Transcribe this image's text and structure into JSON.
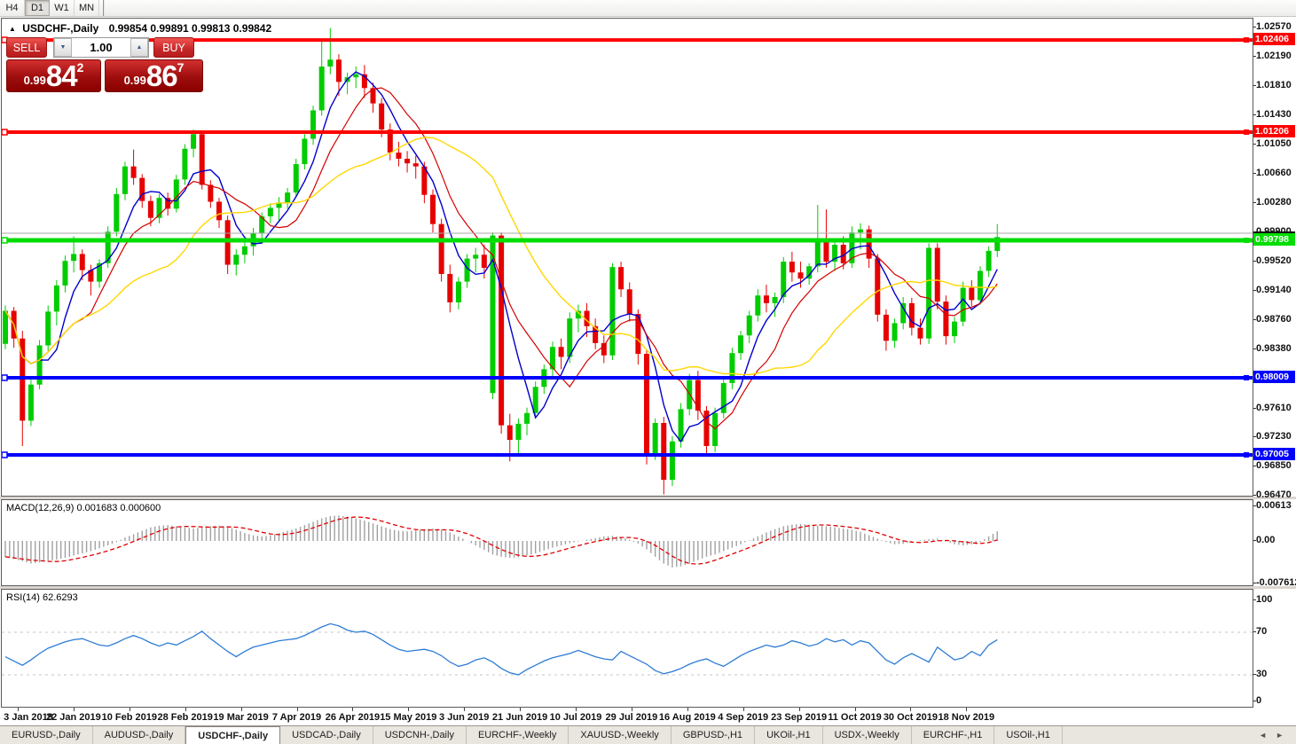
{
  "toolbar": {
    "timeframes": [
      {
        "label": "H4",
        "active": false
      },
      {
        "label": "D1",
        "active": true
      },
      {
        "label": "W1",
        "active": false
      },
      {
        "label": "MN",
        "active": false
      }
    ]
  },
  "chart": {
    "symbol_header": {
      "collapse_icon": "▲",
      "title": "USDCHF-,Daily",
      "ohlc": "0.99854 0.99891 0.99813 0.99842"
    },
    "trade_panel": {
      "sell_label": "SELL",
      "buy_label": "BUY",
      "volume_value": "1.00",
      "spin_down_icon": "▼",
      "spin_up_icon": "▲",
      "sell_price": {
        "prefix": "0.99",
        "digits": "84",
        "sup": "2"
      },
      "buy_price": {
        "prefix": "0.99",
        "digits": "86",
        "sup": "7"
      }
    }
  },
  "chart_data": {
    "type": "candlestick",
    "title": "USDCHF-,Daily",
    "y_axis": {
      "range": [
        0.9647,
        1.0269
      ],
      "ticks": [
        "1.02570",
        "1.02190",
        "1.01810",
        "1.01430",
        "1.01050",
        "1.00660",
        "1.00280",
        "0.99900",
        "0.99520",
        "0.99140",
        "0.98760",
        "0.98380",
        "0.98000",
        "0.97610",
        "0.97230",
        "0.96850",
        "0.96470"
      ]
    },
    "x_axis": {
      "dates": [
        "3 Jan 2019",
        "22 Jan 2019",
        "10 Feb 2019",
        "28 Feb 2019",
        "19 Mar 2019",
        "7 Apr 2019",
        "26 Apr 2019",
        "15 May 2019",
        "3 Jun 2019",
        "21 Jun 2019",
        "10 Jul 2019",
        "29 Jul 2019",
        "16 Aug 2019",
        "4 Sep 2019",
        "23 Sep 2019",
        "11 Oct 2019",
        "30 Oct 2019",
        "18 Nov 2019"
      ]
    },
    "levels": [
      {
        "price": 1.02406,
        "label": "1.02406",
        "color": "#ff0000",
        "thickness": 4
      },
      {
        "price": 1.01206,
        "label": "1.01206",
        "color": "#ff0000",
        "thickness": 4
      },
      {
        "price": 0.99798,
        "label": "0.99798",
        "color": "#00dd00",
        "thickness": 5
      },
      {
        "price": 0.98009,
        "label": "0.98009",
        "color": "#0000ff",
        "thickness": 4
      },
      {
        "price": 0.97005,
        "label": "0.97005",
        "color": "#0000ff",
        "thickness": 4
      },
      {
        "price": 0.9989,
        "label": "",
        "color": "#a8a8a8",
        "thickness": 1
      }
    ],
    "candles": [
      [
        0.9845,
        0.9895,
        0.9838,
        0.9888
      ],
      [
        0.9888,
        0.9893,
        0.984,
        0.9852
      ],
      [
        0.9852,
        0.9862,
        0.9712,
        0.9745
      ],
      [
        0.9745,
        0.98,
        0.9738,
        0.9792
      ],
      [
        0.9792,
        0.985,
        0.9786,
        0.9843
      ],
      [
        0.9843,
        0.9895,
        0.9836,
        0.9887
      ],
      [
        0.9887,
        0.9928,
        0.9869,
        0.9921
      ],
      [
        0.9921,
        0.996,
        0.9912,
        0.9953
      ],
      [
        0.9953,
        0.9985,
        0.9938,
        0.9962
      ],
      [
        0.9962,
        0.9968,
        0.9928,
        0.9941
      ],
      [
        0.9941,
        0.9948,
        0.9908,
        0.9926
      ],
      [
        0.9926,
        0.9955,
        0.9918,
        0.995
      ],
      [
        0.995,
        0.9998,
        0.9944,
        0.9991
      ],
      [
        0.9991,
        1.0048,
        0.9985,
        1.004
      ],
      [
        1.004,
        1.0082,
        1.0032,
        1.0076
      ],
      [
        1.0076,
        1.0098,
        1.0052,
        1.0061
      ],
      [
        1.0061,
        1.0066,
        1.0022,
        1.0031
      ],
      [
        1.0031,
        1.0038,
        0.9998,
        1.0009
      ],
      [
        1.0009,
        1.004,
        1.0002,
        1.0035
      ],
      [
        1.0035,
        1.0042,
        1.0012,
        1.0021
      ],
      [
        1.0021,
        1.0065,
        1.0016,
        1.0059
      ],
      [
        1.0059,
        1.0105,
        1.0052,
        1.0099
      ],
      [
        1.0099,
        1.0124,
        1.0088,
        1.0118
      ],
      [
        1.0118,
        1.0122,
        1.0046,
        1.0052
      ],
      [
        1.0052,
        1.0058,
        1.0022,
        1.003
      ],
      [
        1.003,
        1.0035,
        0.9996,
        1.0006
      ],
      [
        1.0006,
        1.0012,
        0.9936,
        0.9948
      ],
      [
        0.9948,
        0.9968,
        0.9934,
        0.9961
      ],
      [
        0.9961,
        0.998,
        0.995,
        0.9972
      ],
      [
        0.9972,
        0.9996,
        0.996,
        0.9989
      ],
      [
        0.9989,
        1.0016,
        0.9982,
        1.0011
      ],
      [
        1.0011,
        1.0028,
        1.0002,
        1.0022
      ],
      [
        1.0022,
        1.0036,
        1.0006,
        1.0029
      ],
      [
        1.0029,
        1.0048,
        1.0021,
        1.0042
      ],
      [
        1.0042,
        1.0086,
        1.0036,
        1.0079
      ],
      [
        1.0079,
        1.0118,
        1.0072,
        1.0112
      ],
      [
        1.0112,
        1.0155,
        1.0104,
        1.0149
      ],
      [
        1.0149,
        1.0241,
        1.0142,
        1.0206
      ],
      [
        1.0206,
        1.0256,
        1.0196,
        1.0215
      ],
      [
        1.0215,
        1.0222,
        1.0168,
        1.0186
      ],
      [
        1.0186,
        1.0198,
        1.017,
        1.0192
      ],
      [
        1.0192,
        1.0206,
        1.0178,
        1.0196
      ],
      [
        1.0196,
        1.0208,
        1.0165,
        1.0178
      ],
      [
        1.0178,
        1.0185,
        1.0146,
        1.0158
      ],
      [
        1.0158,
        1.0165,
        1.0114,
        1.0124
      ],
      [
        1.0124,
        1.0132,
        1.0084,
        1.0094
      ],
      [
        1.0094,
        1.0108,
        1.0076,
        1.0086
      ],
      [
        1.0086,
        1.0096,
        1.0068,
        1.008
      ],
      [
        1.008,
        1.009,
        1.006,
        1.0076
      ],
      [
        1.0076,
        1.0082,
        1.0028,
        1.0039
      ],
      [
        1.0039,
        1.0046,
        0.999,
        1.0001
      ],
      [
        1.0001,
        1.0008,
        0.9926,
        0.9936
      ],
      [
        0.9936,
        0.9948,
        0.9886,
        0.9899
      ],
      [
        0.9899,
        0.9932,
        0.989,
        0.9926
      ],
      [
        0.9926,
        0.9962,
        0.9918,
        0.9956
      ],
      [
        0.9956,
        0.997,
        0.9938,
        0.9961
      ],
      [
        0.9961,
        0.9974,
        0.993,
        0.9944
      ],
      [
        0.9781,
        0.999,
        0.9773,
        0.9986
      ],
      [
        0.9986,
        0.999,
        0.9728,
        0.9739
      ],
      [
        0.9739,
        0.9754,
        0.9692,
        0.972
      ],
      [
        0.972,
        0.9748,
        0.97,
        0.9741
      ],
      [
        0.9741,
        0.9762,
        0.9726,
        0.9755
      ],
      [
        0.9755,
        0.9796,
        0.9748,
        0.9789
      ],
      [
        0.9789,
        0.9818,
        0.978,
        0.9812
      ],
      [
        0.9812,
        0.9848,
        0.98,
        0.9841
      ],
      [
        0.9841,
        0.9852,
        0.9812,
        0.9828
      ],
      [
        0.9828,
        0.9886,
        0.982,
        0.9878
      ],
      [
        0.9878,
        0.9896,
        0.986,
        0.9888
      ],
      [
        0.9888,
        0.9898,
        0.9854,
        0.9868
      ],
      [
        0.9868,
        0.9878,
        0.9838,
        0.9846
      ],
      [
        0.9846,
        0.9856,
        0.982,
        0.983
      ],
      [
        0.983,
        0.995,
        0.9824,
        0.9945
      ],
      [
        0.9945,
        0.9952,
        0.9906,
        0.9916
      ],
      [
        0.9916,
        0.9925,
        0.9874,
        0.9884
      ],
      [
        0.9884,
        0.989,
        0.9818,
        0.9832
      ],
      [
        0.9832,
        0.9838,
        0.9688,
        0.9701
      ],
      [
        0.9701,
        0.9748,
        0.9694,
        0.9742
      ],
      [
        0.9742,
        0.975,
        0.9649,
        0.9668
      ],
      [
        0.9668,
        0.9725,
        0.966,
        0.9718
      ],
      [
        0.9718,
        0.9768,
        0.971,
        0.976
      ],
      [
        0.976,
        0.9806,
        0.9752,
        0.9798
      ],
      [
        0.9798,
        0.981,
        0.9746,
        0.9758
      ],
      [
        0.9758,
        0.9764,
        0.97,
        0.9712
      ],
      [
        0.9712,
        0.9762,
        0.9704,
        0.9755
      ],
      [
        0.9755,
        0.98,
        0.9748,
        0.9794
      ],
      [
        0.9794,
        0.984,
        0.9786,
        0.9833
      ],
      [
        0.9833,
        0.9862,
        0.9824,
        0.9856
      ],
      [
        0.9856,
        0.9888,
        0.9846,
        0.9882
      ],
      [
        0.9882,
        0.9916,
        0.9874,
        0.9908
      ],
      [
        0.9908,
        0.9922,
        0.9886,
        0.9898
      ],
      [
        0.9898,
        0.9912,
        0.988,
        0.9906
      ],
      [
        0.9906,
        0.9958,
        0.9898,
        0.9952
      ],
      [
        0.9952,
        0.9965,
        0.9926,
        0.9938
      ],
      [
        0.9938,
        0.9952,
        0.9918,
        0.993
      ],
      [
        0.993,
        0.995,
        0.9922,
        0.9946
      ],
      [
        0.9946,
        1.0026,
        0.9938,
        0.9978
      ],
      [
        0.9978,
        1.002,
        0.9944,
        0.9952
      ],
      [
        0.9952,
        0.998,
        0.994,
        0.9974
      ],
      [
        0.9974,
        0.9985,
        0.9942,
        0.995
      ],
      [
        0.995,
        0.9998,
        0.9944,
        0.999
      ],
      [
        0.999,
        1.0002,
        0.9968,
        0.9994
      ],
      [
        0.9994,
        0.9999,
        0.9944,
        0.9956
      ],
      [
        0.9956,
        0.9962,
        0.9874,
        0.9883
      ],
      [
        0.9883,
        0.989,
        0.9836,
        0.9849
      ],
      [
        0.9849,
        0.9878,
        0.984,
        0.9872
      ],
      [
        0.9872,
        0.9906,
        0.9864,
        0.9898
      ],
      [
        0.9898,
        0.9905,
        0.9856,
        0.9866
      ],
      [
        0.9866,
        0.9878,
        0.9844,
        0.9852
      ],
      [
        0.9852,
        0.9976,
        0.9845,
        0.997
      ],
      [
        0.997,
        0.9976,
        0.989,
        0.99
      ],
      [
        0.99,
        0.9908,
        0.9844,
        0.9855
      ],
      [
        0.9855,
        0.988,
        0.9846,
        0.9874
      ],
      [
        0.9874,
        0.9926,
        0.9868,
        0.9918
      ],
      [
        0.9918,
        0.9928,
        0.9894,
        0.9902
      ],
      [
        0.9902,
        0.9946,
        0.9896,
        0.994
      ],
      [
        0.994,
        0.9972,
        0.9932,
        0.9966
      ],
      [
        0.9966,
        1.0001,
        0.9958,
        0.9984
      ]
    ],
    "indicators": [
      {
        "name": "MACD",
        "label": "MACD(12,26,9) 0.001683 0.000600",
        "ticks": [
          "0.00613",
          "0.00",
          "-0.007612"
        ],
        "histogram": [
          -0.0028,
          -0.0032,
          -0.0036,
          -0.004,
          -0.0038,
          -0.0035,
          -0.0033,
          -0.003,
          -0.0026,
          -0.0022,
          -0.0018,
          -0.0013,
          -0.0008,
          -0.0002,
          0.0006,
          0.0012,
          0.0018,
          0.0024,
          0.0027,
          0.0028,
          0.0026,
          0.0024,
          0.0022,
          0.0024,
          0.0026,
          0.0027,
          0.0025,
          0.002,
          0.0014,
          0.001,
          0.0008,
          0.001,
          0.0014,
          0.0018,
          0.0022,
          0.0028,
          0.0034,
          0.004,
          0.0044,
          0.0045,
          0.0043,
          0.004,
          0.0036,
          0.0031,
          0.0026,
          0.0021,
          0.0018,
          0.0017,
          0.0019,
          0.0021,
          0.0022,
          0.002,
          0.0015,
          0.0008,
          0.0,
          -0.0008,
          -0.0016,
          -0.0024,
          -0.0028,
          -0.003,
          -0.0029,
          -0.0026,
          -0.0022,
          -0.0017,
          -0.0012,
          -0.0008,
          -0.0004,
          -0.0001,
          0.0002,
          0.0005,
          0.0008,
          0.0009,
          0.0007,
          0.0002,
          -0.0005,
          -0.0015,
          -0.0028,
          -0.004,
          -0.0047,
          -0.0045,
          -0.004,
          -0.0034,
          -0.0028,
          -0.0024,
          -0.0018,
          -0.0012,
          -0.0006,
          0.0001,
          0.0008,
          0.0015,
          0.0021,
          0.0026,
          0.0029,
          0.003,
          0.0029,
          0.0027,
          0.0026,
          0.0024,
          0.0022,
          0.002,
          0.0016,
          0.001,
          0.0004,
          -0.0002,
          -0.0006,
          -0.0005,
          -0.0002,
          0.0001,
          0.0003,
          0.0004,
          -0.0001,
          -0.0006,
          -0.0008,
          -0.0006,
          -0.0002,
          0.0008,
          0.0017
        ]
      },
      {
        "name": "RSI",
        "label": "RSI(14) 62.6293",
        "ticks": [
          "100",
          "70",
          "30",
          "0"
        ],
        "levels": [
          70,
          30
        ],
        "values": [
          47,
          43,
          39,
          44,
          50,
          55,
          58,
          61,
          63,
          64,
          61,
          58,
          57,
          60,
          64,
          67,
          64,
          60,
          57,
          60,
          58,
          62,
          66,
          71,
          64,
          58,
          52,
          47,
          52,
          56,
          58,
          60,
          62,
          63,
          64,
          67,
          71,
          75,
          78,
          76,
          72,
          70,
          71,
          68,
          63,
          58,
          54,
          52,
          53,
          54,
          52,
          48,
          42,
          38,
          40,
          44,
          46,
          42,
          36,
          32,
          30,
          35,
          39,
          43,
          46,
          48,
          50,
          53,
          50,
          47,
          45,
          44,
          52,
          48,
          44,
          40,
          34,
          31,
          33,
          36,
          40,
          43,
          45,
          41,
          38,
          43,
          48,
          52,
          55,
          58,
          56,
          58,
          62,
          60,
          57,
          59,
          64,
          61,
          63,
          58,
          62,
          60,
          52,
          44,
          40,
          46,
          50,
          46,
          42,
          56,
          50,
          44,
          46,
          52,
          48,
          58,
          63
        ]
      }
    ]
  },
  "colors": {
    "candle_up": "#00cc00",
    "candle_down": "#e60000",
    "ma_fast": "#0000cd",
    "ma_mid": "#d40000",
    "ma_slow": "#ffd700",
    "macd_hist": "#a0a0a0",
    "macd_signal": "#e00000",
    "rsi_line": "#2d7cd6",
    "level_red": "#ff0000",
    "level_green": "#00dd00",
    "level_blue": "#0000ff",
    "current_price_line": "#a8a8a8"
  },
  "tabs": {
    "scroll_left": "◄",
    "scroll_right": "►",
    "items": [
      {
        "label": "EURUSD-,Daily",
        "active": false
      },
      {
        "label": "AUDUSD-,Daily",
        "active": false
      },
      {
        "label": "USDCHF-,Daily",
        "active": true
      },
      {
        "label": "USDCAD-,Daily",
        "active": false
      },
      {
        "label": "USDCNH-,Daily",
        "active": false
      },
      {
        "label": "EURCHF-,Weekly",
        "active": false
      },
      {
        "label": "XAUUSD-,Weekly",
        "active": false
      },
      {
        "label": "GBPUSD-,H1",
        "active": false
      },
      {
        "label": "UKOil-,H1",
        "active": false
      },
      {
        "label": "USDX-,Weekly",
        "active": false
      },
      {
        "label": "EURCHF-,H1",
        "active": false
      },
      {
        "label": "USOil-,H1",
        "active": false
      }
    ]
  }
}
